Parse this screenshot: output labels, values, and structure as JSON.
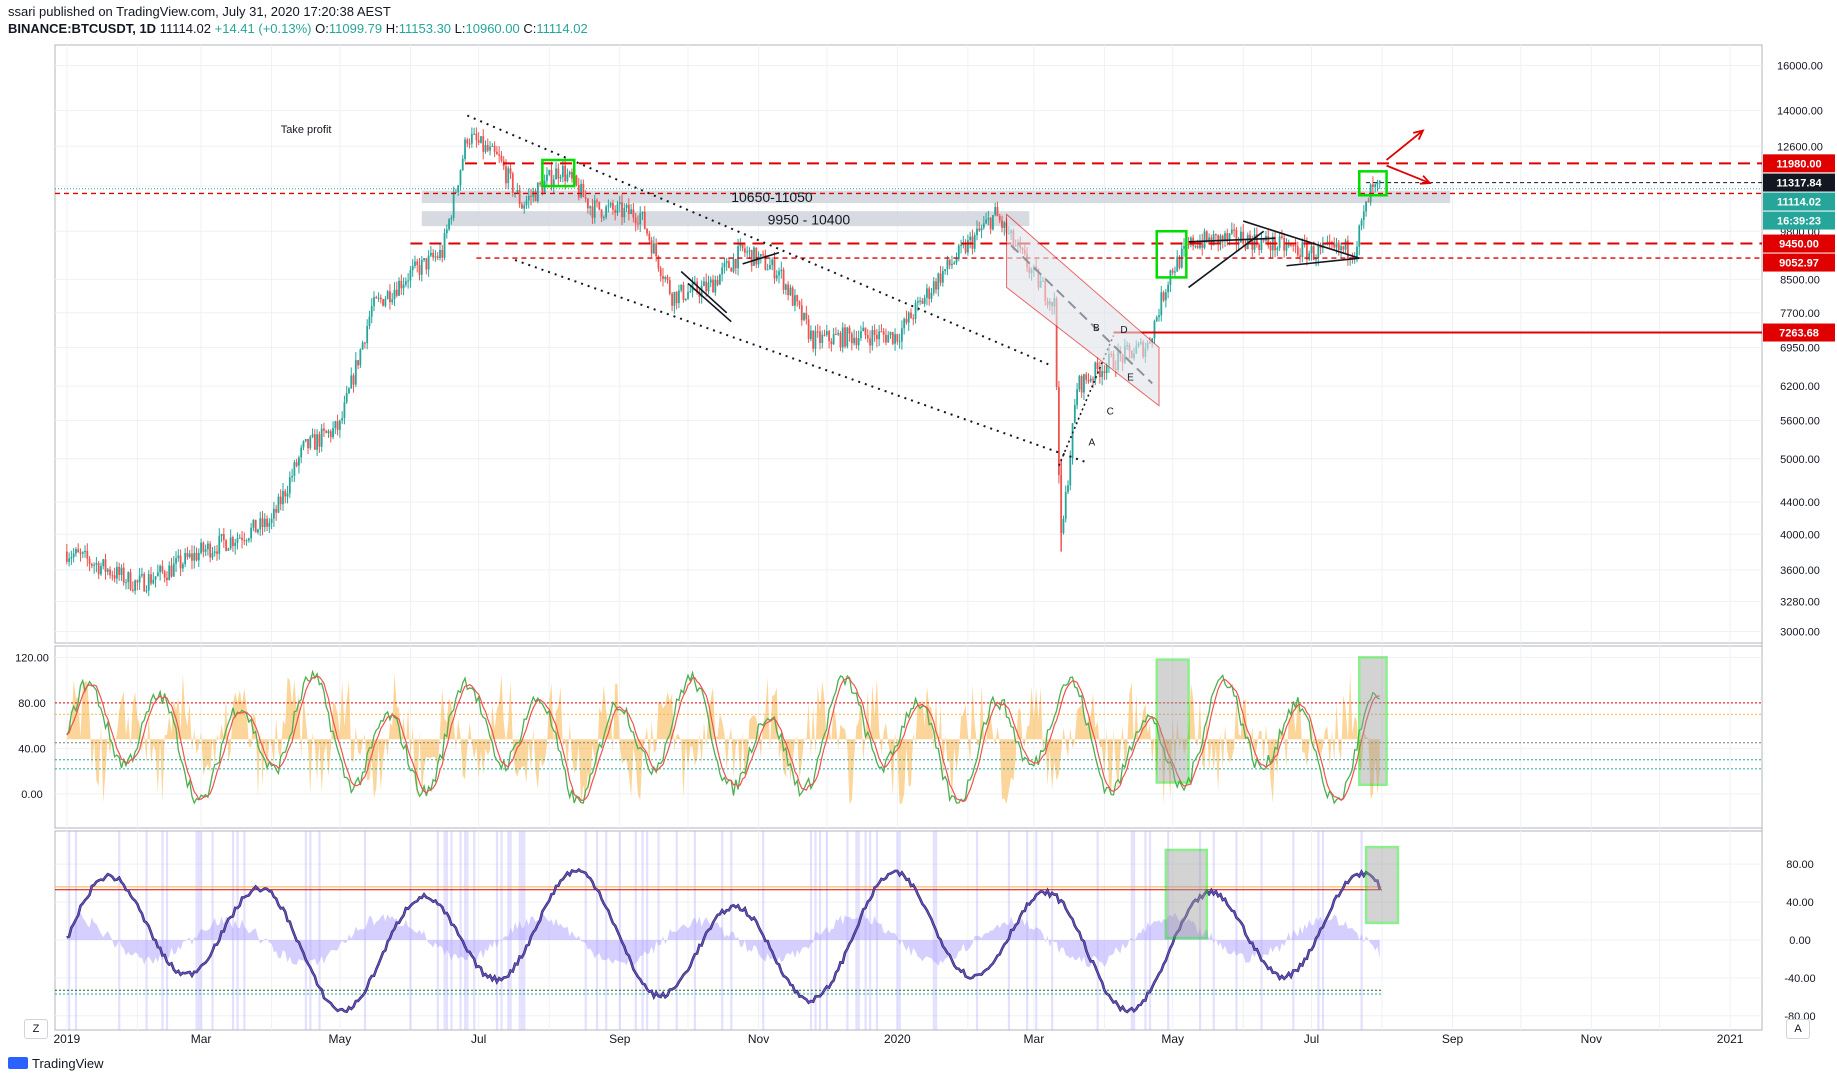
{
  "header": {
    "published": "ssari published on TradingView.com, July 31, 2020 17:20:38 AEST",
    "symbol": "BINANCE:BTCUSDT, 1D",
    "last": "11114.02",
    "change": "+14.41 (+0.13%)",
    "open_label": "O:",
    "open": "11099.79",
    "high_label": "H:",
    "high": "11153.30",
    "low_label": "L:",
    "low": "10960.00",
    "close_label": "C:",
    "close": "11114.02"
  },
  "footer": {
    "brand": "TradingView",
    "left_button": "Z",
    "right_button": "A"
  },
  "colors": {
    "up": "#26a69a",
    "down": "#ef5350",
    "resistance": "#e00000",
    "highlight_box": "#00dd00",
    "zone": "#d1d4dc",
    "stoch_fill": "#f7b246",
    "osc_line": "#6a4bd1"
  },
  "chart_data": [
    {
      "type": "candlestick",
      "scale": "log",
      "ylim": [
        2900,
        17000
      ],
      "price_ticks": [
        16000,
        14000,
        12600,
        11200,
        9800,
        8500,
        7700,
        6950,
        6200,
        5600,
        5000,
        4400,
        4000,
        3600,
        3280,
        3000
      ],
      "price_tick_labels": [
        "16000.00",
        "14000.00",
        "12600.00",
        "11200.00",
        "9800.00",
        "8500.00",
        "7700.00",
        "6950.00",
        "6200.00",
        "5600.00",
        "5000.00",
        "4400.00",
        "4000.00",
        "3600.00",
        "3280.00",
        "3000.00"
      ],
      "x_ticks": [
        "2019",
        "Mar",
        "May",
        "Jul",
        "Sep",
        "Nov",
        "2020",
        "Mar",
        "May",
        "Jul",
        "Sep",
        "Nov",
        "2021"
      ],
      "price_path": [
        [
          "2019-01-01",
          3800
        ],
        [
          "2019-01-15",
          3650
        ],
        [
          "2019-02-01",
          3450
        ],
        [
          "2019-02-15",
          3600
        ],
        [
          "2019-03-01",
          3800
        ],
        [
          "2019-03-15",
          3950
        ],
        [
          "2019-04-01",
          4150
        ],
        [
          "2019-04-15",
          5150
        ],
        [
          "2019-05-01",
          5500
        ],
        [
          "2019-05-15",
          7800
        ],
        [
          "2019-05-31",
          8600
        ],
        [
          "2019-06-15",
          9200
        ],
        [
          "2019-06-26",
          13000
        ],
        [
          "2019-07-10",
          12100
        ],
        [
          "2019-07-20",
          10600
        ],
        [
          "2019-08-06",
          11800
        ],
        [
          "2019-08-20",
          10500
        ],
        [
          "2019-09-10",
          10300
        ],
        [
          "2019-09-24",
          8100
        ],
        [
          "2019-10-10",
          8300
        ],
        [
          "2019-10-25",
          9250
        ],
        [
          "2019-11-10",
          8700
        ],
        [
          "2019-11-25",
          7100
        ],
        [
          "2019-12-15",
          7200
        ],
        [
          "2020-01-01",
          7200
        ],
        [
          "2020-01-20",
          8600
        ],
        [
          "2020-02-13",
          10300
        ],
        [
          "2020-03-01",
          8600
        ],
        [
          "2020-03-10",
          7900
        ],
        [
          "2020-03-12",
          4900
        ],
        [
          "2020-03-13",
          3900
        ],
        [
          "2020-03-20",
          6200
        ],
        [
          "2020-04-01",
          6600
        ],
        [
          "2020-04-20",
          7000
        ],
        [
          "2020-04-30",
          8700
        ],
        [
          "2020-05-10",
          9500
        ],
        [
          "2020-06-01",
          9600
        ],
        [
          "2020-07-01",
          9200
        ],
        [
          "2020-07-20",
          9300
        ],
        [
          "2020-07-27",
          11000
        ],
        [
          "2020-07-31",
          11114
        ]
      ],
      "price_labels": [
        {
          "value": 11980.0,
          "text": "11980.00",
          "style": "red"
        },
        {
          "value": 11317.84,
          "text": "11317.84",
          "style": "black"
        },
        {
          "value": 11114.02,
          "text": "11114.02",
          "style": "teal"
        },
        {
          "value": 10600,
          "text": "16:39:23",
          "style": "teal"
        },
        {
          "value": 9450.0,
          "text": "9450.00",
          "style": "red"
        },
        {
          "value": 9052.97,
          "text": "9052.97",
          "style": "red"
        },
        {
          "value": 7263.68,
          "text": "7263.68",
          "style": "red"
        }
      ],
      "annotations": [
        {
          "text": "Take profit"
        },
        {
          "text": "10650-11050"
        },
        {
          "text": "9950 - 10400"
        },
        {
          "text": "A"
        },
        {
          "text": "B"
        },
        {
          "text": "C"
        },
        {
          "text": "D"
        },
        {
          "text": "E"
        }
      ]
    },
    {
      "type": "line",
      "name": "",
      "ylim": [
        -30,
        130
      ],
      "y_ticks": [
        120,
        80,
        40,
        0
      ],
      "y_tick_labels": [
        "120.00",
        "80.00",
        "40.00",
        "0.00"
      ]
    },
    {
      "type": "line",
      "name": "",
      "ylim": [
        -95,
        115
      ],
      "y_ticks": [
        80,
        40,
        0,
        -40,
        -80
      ],
      "y_tick_labels": [
        "80.00",
        "40.00",
        "0.00",
        "-40.00",
        "-80.00"
      ]
    }
  ]
}
